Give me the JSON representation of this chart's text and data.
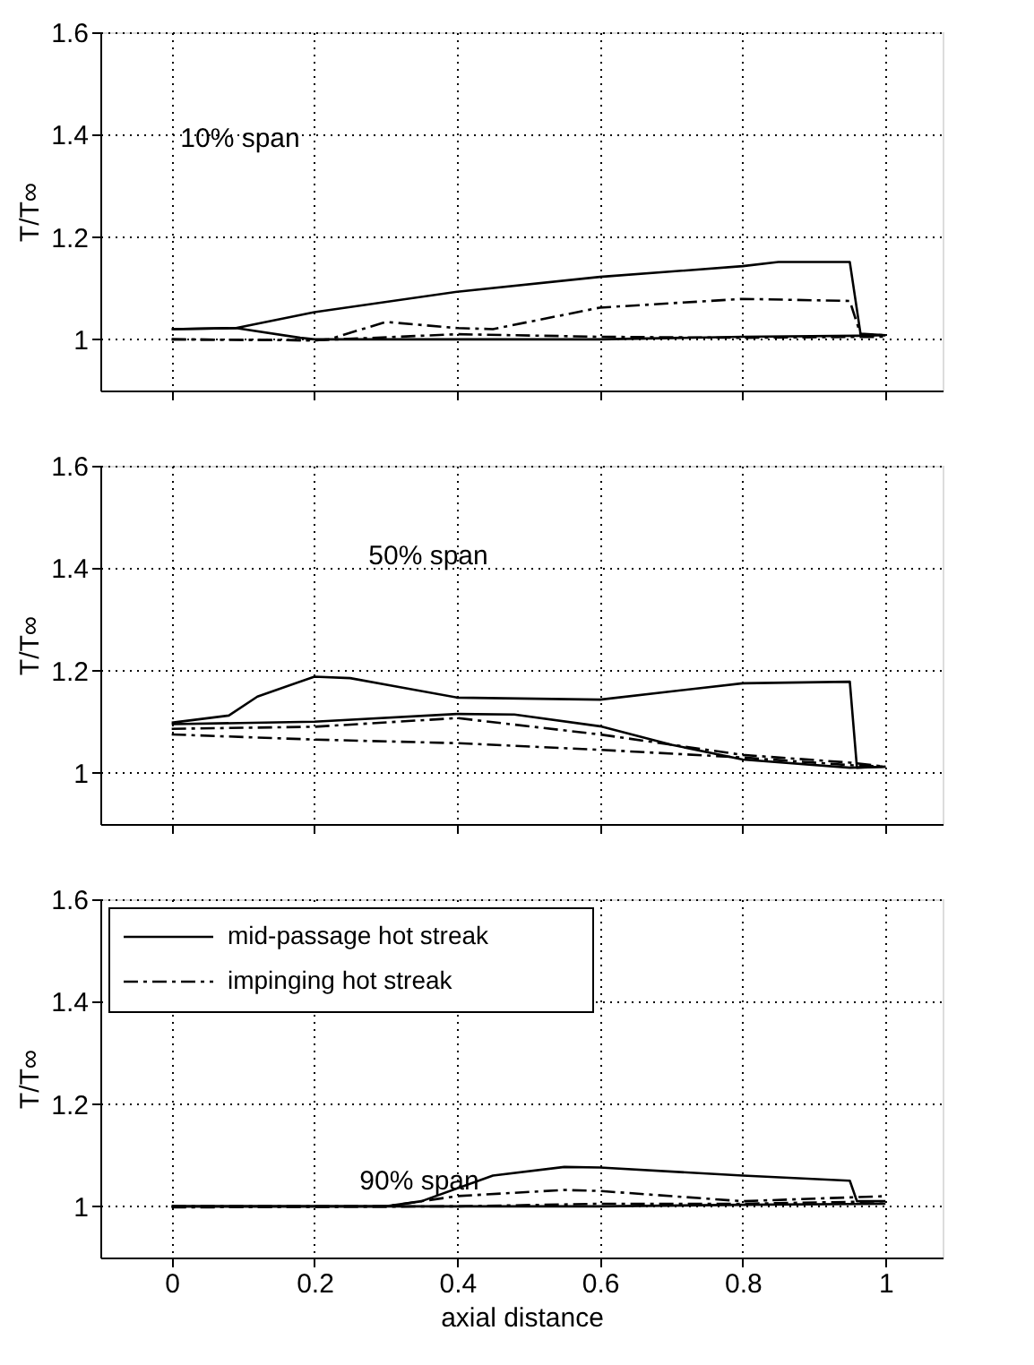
{
  "chart_data": [
    {
      "type": "line",
      "ylabel": "T/T∞",
      "xlim": [
        -0.1,
        1.08
      ],
      "ylim": [
        0.9,
        1.6
      ],
      "xticks": [
        0,
        0.2,
        0.4,
        0.6,
        0.8,
        1
      ],
      "yticks": [
        1,
        1.2,
        1.4,
        1.6
      ],
      "grid": true,
      "tick_labels": "y",
      "annotations": [
        "10% span"
      ],
      "series": [
        {
          "color": "#000000",
          "line_style": "solid",
          "x": [
            0,
            0.09,
            0.2,
            0.4,
            0.6,
            0.8,
            0.85,
            0.95,
            0.965,
            1
          ],
          "values": [
            1.02,
            1.022,
            1.053,
            1.093,
            1.122,
            1.143,
            1.151,
            1.151,
            1.011,
            1.008
          ]
        },
        {
          "color": "#000000",
          "line_style": "solid",
          "x": [
            0,
            0.09,
            0.18,
            0.2,
            0.4,
            0.6,
            0.8,
            0.96,
            1
          ],
          "values": [
            1.02,
            1.022,
            1.003,
            1.0,
            1.0,
            1.0,
            1.005,
            1.007,
            1.008
          ]
        },
        {
          "color": "#000000",
          "line_style": "dashdot",
          "x": [
            0,
            0.2,
            0.22,
            0.3,
            0.4,
            0.45,
            0.6,
            0.8,
            0.95,
            0.965,
            1
          ],
          "values": [
            1.0,
            0.998,
            1.0,
            1.034,
            1.022,
            1.02,
            1.062,
            1.079,
            1.075,
            1.01,
            1.008
          ]
        },
        {
          "color": "#000000",
          "line_style": "dashdot",
          "x": [
            0,
            0.2,
            0.4,
            0.6,
            0.8,
            1
          ],
          "values": [
            1.0,
            0.998,
            1.01,
            1.005,
            1.003,
            1.005
          ]
        }
      ]
    },
    {
      "type": "line",
      "ylabel": "T/T∞",
      "xlim": [
        -0.1,
        1.08
      ],
      "ylim": [
        0.9,
        1.6
      ],
      "xticks": [
        0,
        0.2,
        0.4,
        0.6,
        0.8,
        1
      ],
      "yticks": [
        1,
        1.2,
        1.4,
        1.6
      ],
      "grid": true,
      "tick_labels": "y",
      "annotations": [
        "50% span"
      ],
      "series": [
        {
          "color": "#000000",
          "line_style": "solid",
          "x": [
            0,
            0.08,
            0.12,
            0.2,
            0.25,
            0.4,
            0.6,
            0.8,
            0.95,
            0.96,
            1
          ],
          "values": [
            1.098,
            1.112,
            1.149,
            1.188,
            1.185,
            1.147,
            1.143,
            1.175,
            1.178,
            1.01,
            1.012
          ]
        },
        {
          "color": "#000000",
          "line_style": "solid",
          "x": [
            0,
            0.2,
            0.4,
            0.48,
            0.6,
            0.7,
            0.8,
            0.95,
            1
          ],
          "values": [
            1.095,
            1.1,
            1.115,
            1.114,
            1.091,
            1.055,
            1.026,
            1.01,
            1.012
          ]
        },
        {
          "color": "#000000",
          "line_style": "dashdot",
          "x": [
            0,
            0.2,
            0.4,
            0.6,
            0.8,
            0.95,
            1
          ],
          "values": [
            1.086,
            1.09,
            1.107,
            1.075,
            1.035,
            1.02,
            1.012
          ]
        },
        {
          "color": "#000000",
          "line_style": "dashdot",
          "x": [
            0,
            0.2,
            0.4,
            0.6,
            0.8,
            0.95,
            1
          ],
          "values": [
            1.075,
            1.065,
            1.058,
            1.045,
            1.03,
            1.015,
            1.012
          ]
        }
      ]
    },
    {
      "type": "line",
      "ylabel": "T/T∞",
      "xlabel": "axial distance",
      "xlim": [
        -0.1,
        1.08
      ],
      "ylim": [
        0.9,
        1.6
      ],
      "xticks": [
        0,
        0.2,
        0.4,
        0.6,
        0.8,
        1
      ],
      "yticks": [
        1,
        1.2,
        1.4,
        1.6
      ],
      "grid": true,
      "legend": "top left",
      "annotations": [
        "90% span"
      ],
      "series": [
        {
          "name": "mid-passage hot streak",
          "color": "#000000",
          "line_style": "solid",
          "x": [
            0,
            0.3,
            0.35,
            0.45,
            0.55,
            0.6,
            0.8,
            0.95,
            0.96,
            1
          ],
          "values": [
            1.0,
            1.0,
            1.01,
            1.06,
            1.077,
            1.076,
            1.06,
            1.05,
            1.01,
            1.01
          ]
        },
        {
          "color": "#000000",
          "line_style": "solid",
          "x": [
            0,
            0.4,
            0.6,
            0.8,
            1
          ],
          "values": [
            1.0,
            1.0,
            1.0,
            1.003,
            1.005
          ]
        },
        {
          "name": "impinging hot streak",
          "color": "#000000",
          "line_style": "dashdot",
          "x": [
            0,
            0.3,
            0.4,
            0.55,
            0.6,
            0.8,
            1
          ],
          "values": [
            1.0,
            1.0,
            1.02,
            1.032,
            1.03,
            1.01,
            1.02
          ]
        },
        {
          "color": "#000000",
          "line_style": "dashdot",
          "x": [
            0,
            0.4,
            0.6,
            0.8,
            1
          ],
          "values": [
            0.998,
            1.0,
            1.005,
            1.005,
            1.01
          ]
        }
      ]
    }
  ]
}
